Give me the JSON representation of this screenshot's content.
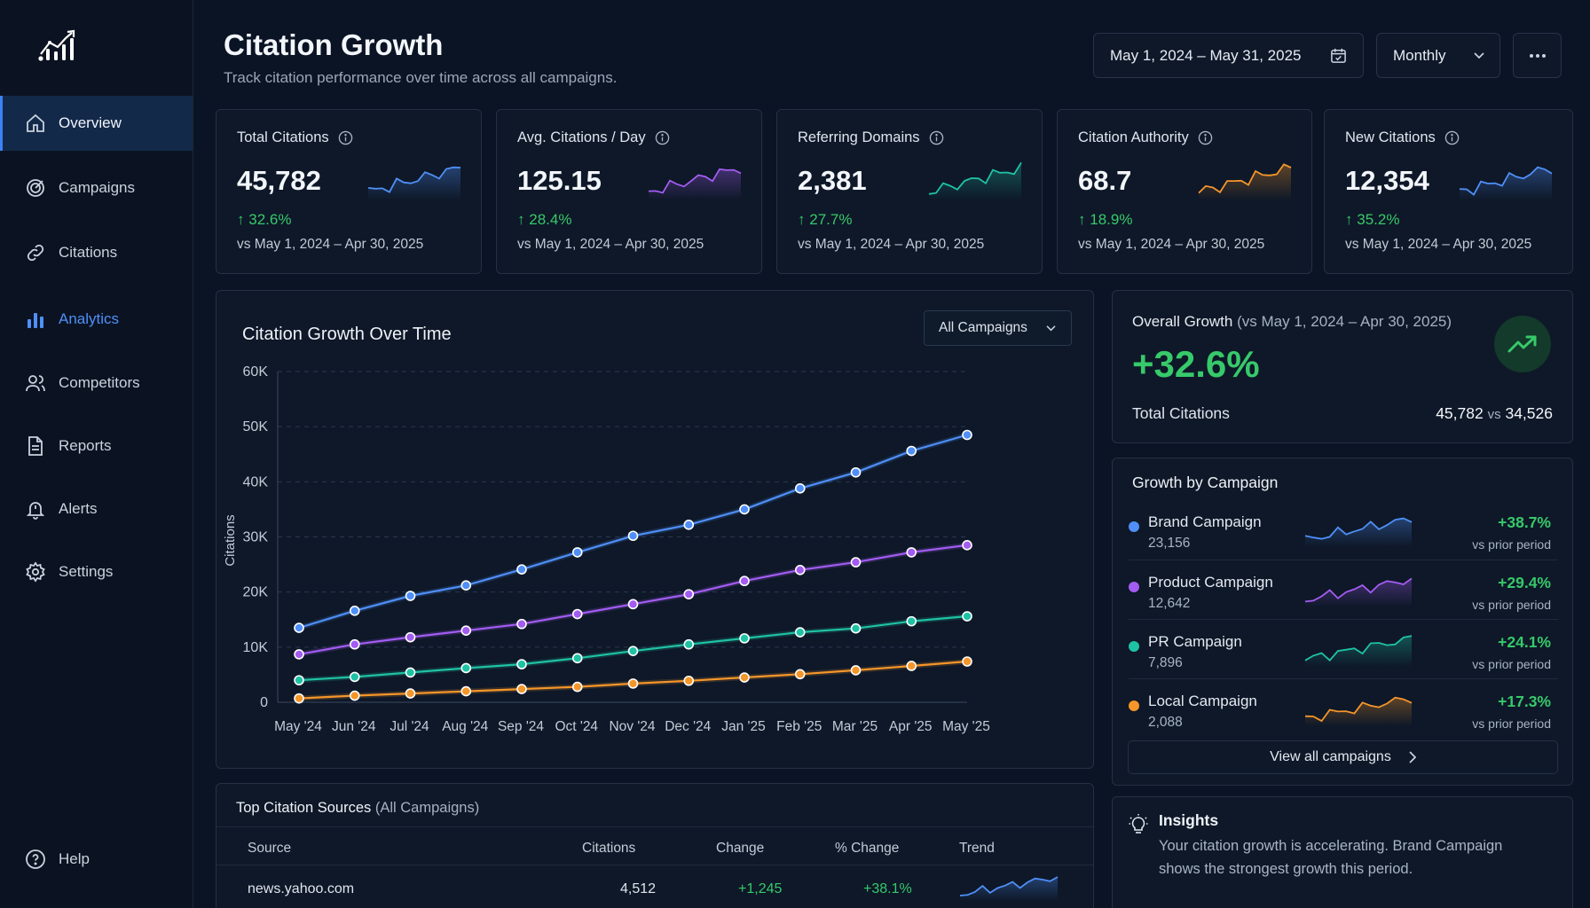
{
  "sidebar": {
    "items": [
      {
        "label": "Overview",
        "icon": "home-icon"
      },
      {
        "label": "Campaigns",
        "icon": "target-icon"
      },
      {
        "label": "Citations",
        "icon": "link-icon"
      },
      {
        "label": "Analytics",
        "icon": "bar-chart-icon"
      },
      {
        "label": "Competitors",
        "icon": "users-icon"
      },
      {
        "label": "Reports",
        "icon": "document-icon"
      },
      {
        "label": "Alerts",
        "icon": "bell-icon"
      },
      {
        "label": "Settings",
        "icon": "gear-icon"
      }
    ],
    "help": "Help",
    "accent_color": "#3b82f6"
  },
  "header": {
    "title": "Citation Growth",
    "subtitle": "Track citation performance over time across all campaigns.",
    "date_range": "May 1, 2024 – May 31, 2025",
    "interval": "Monthly"
  },
  "kpis": [
    {
      "title": "Total Citations",
      "value": "45,782",
      "delta": "32.6%",
      "compare": "vs May 1, 2024 – Apr 30, 2025",
      "color": "#4f8ff7"
    },
    {
      "title": "Avg. Citations / Day",
      "value": "125.15",
      "delta": "28.4%",
      "compare": "vs May 1, 2024 – Apr 30, 2025",
      "color": "#a35cf2"
    },
    {
      "title": "Referring Domains",
      "value": "2,381",
      "delta": "27.7%",
      "compare": "vs May 1, 2024 – Apr 30, 2025",
      "color": "#1fc2a5"
    },
    {
      "title": "Citation Authority",
      "value": "68.7",
      "delta": "18.9%",
      "compare": "vs May 1, 2024 – Apr 30, 2025",
      "color": "#f5962a"
    },
    {
      "title": "New Citations",
      "value": "12,354",
      "delta": "35.2%",
      "compare": "vs May 1, 2024 – Apr 30, 2025",
      "color": "#4f8ff7"
    }
  ],
  "main_chart": {
    "title": "Citation Growth Over Time",
    "filter": "All Campaigns"
  },
  "chart_data": {
    "type": "line",
    "ylabel": "Citations",
    "xlabel": "",
    "x": [
      "May '24",
      "Jun '24",
      "Jul '24",
      "Aug '24",
      "Sep '24",
      "Oct '24",
      "Nov '24",
      "Dec '24",
      "Jan '25",
      "Feb '25",
      "Mar '25",
      "Apr '25",
      "May '25"
    ],
    "ylim": [
      0,
      60000
    ],
    "yticks": [
      "0",
      "10K",
      "20K",
      "30K",
      "40K",
      "50K",
      "60K"
    ],
    "grid": true,
    "series": [
      {
        "color": "#4f8ff7",
        "values": [
          13500,
          16600,
          19300,
          21200,
          24100,
          27200,
          30200,
          32200,
          35000,
          38800,
          41700,
          45600,
          48500
        ]
      },
      {
        "color": "#a35cf2",
        "values": [
          8700,
          10500,
          11800,
          13000,
          14200,
          16000,
          17800,
          19600,
          22000,
          24000,
          25400,
          27200,
          28500
        ]
      },
      {
        "color": "#1fc2a5",
        "values": [
          4000,
          4600,
          5400,
          6200,
          6900,
          8000,
          9300,
          10500,
          11600,
          12700,
          13400,
          14700,
          15600
        ]
      },
      {
        "color": "#f5962a",
        "values": [
          700,
          1200,
          1600,
          2000,
          2400,
          2800,
          3400,
          3900,
          4500,
          5100,
          5800,
          6600,
          7400
        ]
      }
    ]
  },
  "overall": {
    "title": "Overall Growth",
    "period": "(vs May 1, 2024 – Apr 30, 2025)",
    "value": "+32.6%",
    "label": "Total Citations",
    "current": "45,782",
    "vs_word": "vs",
    "previous": "34,526"
  },
  "growth_by_campaign": {
    "title": "Growth by Campaign",
    "campaigns": [
      {
        "name": "Brand Campaign",
        "count": "23,156",
        "pct": "+38.7%",
        "vs": "vs prior period",
        "color": "#4f8ff7"
      },
      {
        "name": "Product Campaign",
        "count": "12,642",
        "pct": "+29.4%",
        "vs": "vs prior period",
        "color": "#a35cf2"
      },
      {
        "name": "PR Campaign",
        "count": "7,896",
        "pct": "+24.1%",
        "vs": "vs prior period",
        "color": "#1fc2a5"
      },
      {
        "name": "Local Campaign",
        "count": "2,088",
        "pct": "+17.3%",
        "vs": "vs prior period",
        "color": "#f5962a"
      }
    ],
    "view_all": "View all campaigns"
  },
  "sources": {
    "title": "Top Citation Sources",
    "scope": "(All Campaigns)",
    "columns": [
      "Source",
      "Citations",
      "Change",
      "% Change",
      "Trend"
    ],
    "rows": [
      {
        "source": "news.yahoo.com",
        "citations": "4,512",
        "change": "+1,245",
        "pct": "+38.1%"
      }
    ]
  },
  "insights": {
    "title": "Insights",
    "text_line1": "Your citation growth is accelerating. Brand Campaign",
    "text_line2": "shows the strongest growth this period."
  },
  "colors": {
    "positive": "#37c96a",
    "background": "#0b1424",
    "card": "#0e1828"
  }
}
